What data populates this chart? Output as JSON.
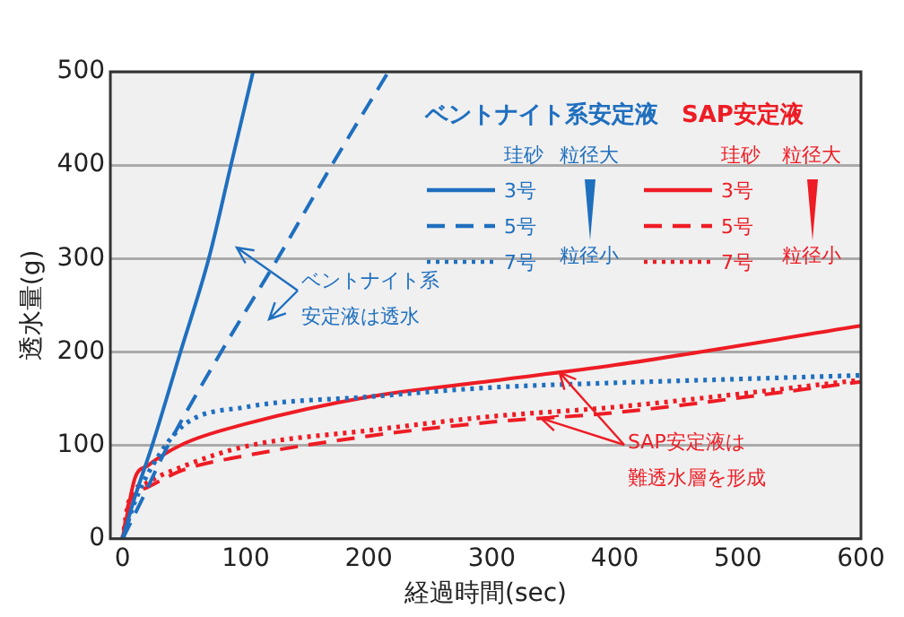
{
  "chart_data": {
    "type": "line",
    "xlabel": "経過時間(sec)",
    "ylabel": "透水量(g)",
    "xlim": [
      -10,
      600
    ],
    "xticks": [
      0,
      100,
      200,
      300,
      400,
      500,
      600
    ],
    "ylim": [
      0,
      500
    ],
    "yticks": [
      0,
      100,
      200,
      300,
      400,
      500
    ],
    "grid": "y",
    "marker": "none",
    "series": [
      {
        "name": "3号",
        "color": "#1f6fbf",
        "line_style": "solid",
        "x": [
          0,
          10,
          24,
          47,
          70,
          88,
          106
        ],
        "values": [
          0,
          45,
          100,
          200,
          300,
          400,
          500
        ]
      },
      {
        "name": "5号",
        "color": "#1f6fbf",
        "line_style": "dashed",
        "x": [
          0,
          15,
          35,
          80,
          126,
          170,
          216
        ],
        "values": [
          0,
          40,
          95,
          200,
          300,
          400,
          500
        ]
      },
      {
        "name": "7号",
        "color": "#1f6fbf",
        "line_style": "dotted",
        "x": [
          0,
          10,
          25,
          50,
          100,
          200,
          300,
          400,
          500,
          600
        ],
        "values": [
          0,
          40,
          80,
          122,
          141,
          152,
          162,
          167,
          171,
          175
        ]
      },
      {
        "name": "3号",
        "color": "#ee1c24",
        "line_style": "solid",
        "x": [
          0,
          10,
          20,
          50,
          100,
          200,
          300,
          400,
          600
        ],
        "values": [
          0,
          65,
          78,
          102,
          123,
          152,
          169,
          186,
          228
        ]
      },
      {
        "name": "5号",
        "color": "#ee1c24",
        "line_style": "dashed",
        "x": [
          0,
          5,
          20,
          50,
          100,
          200,
          300,
          400,
          600
        ],
        "values": [
          0,
          38,
          55,
          74,
          89,
          110,
          125,
          135,
          168
        ]
      },
      {
        "name": "7号",
        "color": "#ee1c24",
        "line_style": "dotted",
        "x": [
          0,
          5,
          20,
          50,
          100,
          200,
          300,
          400,
          600
        ],
        "values": [
          0,
          40,
          60,
          78,
          99,
          116,
          131,
          141,
          170
        ]
      }
    ],
    "legend": "top right",
    "annotations": [
      "ベントナイト系安定液",
      "珪砂",
      "粒径大",
      "粒径小",
      "SAP安定液",
      "珪砂",
      "粒径大",
      "粒径小",
      "ベントナイト系",
      "安定液は透水",
      {
        "text": "SAP安定液は",
        "x": 355,
        "y": 178
      },
      {
        "text": "難透水層を形成",
        "x": 340,
        "y": 129
      }
    ]
  }
}
